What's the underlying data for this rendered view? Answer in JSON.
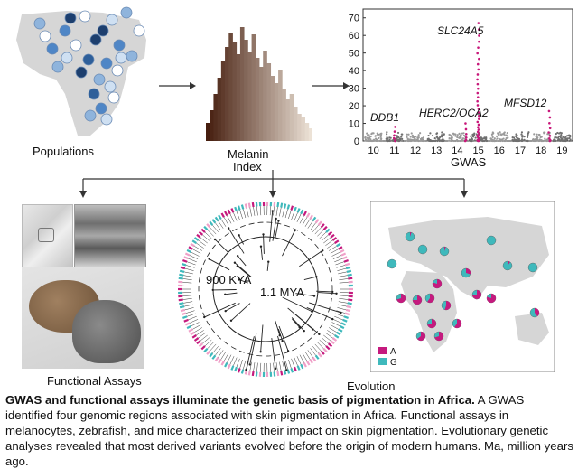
{
  "labels": {
    "populations": "Populations",
    "melanin_line1": "Melanin",
    "melanin_line2": "Index",
    "gwas": "GWAS",
    "functional_assays": "Functional Assays",
    "evolution": "Evolution",
    "kya": "900 KYA",
    "mya": "1.1 MYA"
  },
  "gwas_genes": {
    "ddb1": "DDB1",
    "herc2": "HERC2/OCA2",
    "slc24a5": "SLC24A5",
    "mfsd12": "MFSD12"
  },
  "legend": {
    "a": "A",
    "g": "G"
  },
  "caption": {
    "title": "GWAS and functional assays illuminate the genetic basis of pigmentation in Africa.",
    "body": " A GWAS identified four genomic regions associated with skin pigmentation in Africa. Functional assays in melanocytes, zebrafish, and mice characterized their impact on skin pigmentation. Evolutionary genetic analyses revealed that most derived variants evolved before the origin of modern humans. Ma, million years ago."
  },
  "chart_data": {
    "type": "scatter",
    "title": "",
    "xlabel": "GWAS",
    "ylabel": "",
    "ylim": [
      0,
      75
    ],
    "yticks": [
      "0",
      "10",
      "20",
      "30",
      "40",
      "50",
      "60",
      "70"
    ],
    "xticks": [
      "10",
      "11",
      "12",
      "13",
      "14",
      "15",
      "16",
      "17",
      "18",
      "19"
    ],
    "peaks": [
      {
        "chromosome": "11",
        "gene": "DDB1",
        "neg_log10_p": 8
      },
      {
        "chromosome": "15",
        "gene": "HERC2/OCA2",
        "neg_log10_p": 10
      },
      {
        "chromosome": "15",
        "gene": "SLC24A5",
        "neg_log10_p": 67
      },
      {
        "chromosome": "18",
        "gene": "MFSD12",
        "neg_log10_p": 17
      }
    ],
    "colors": {
      "highlight": "#c8177a",
      "grey": "#9a9a9a",
      "grey_alt": "#707070"
    }
  },
  "colors": {
    "allele_a": "#c51a7e",
    "allele_g": "#3fb9bc",
    "map_land": "#d9d9d9",
    "map_sea": "#ffffff",
    "arrow": "#333333"
  }
}
